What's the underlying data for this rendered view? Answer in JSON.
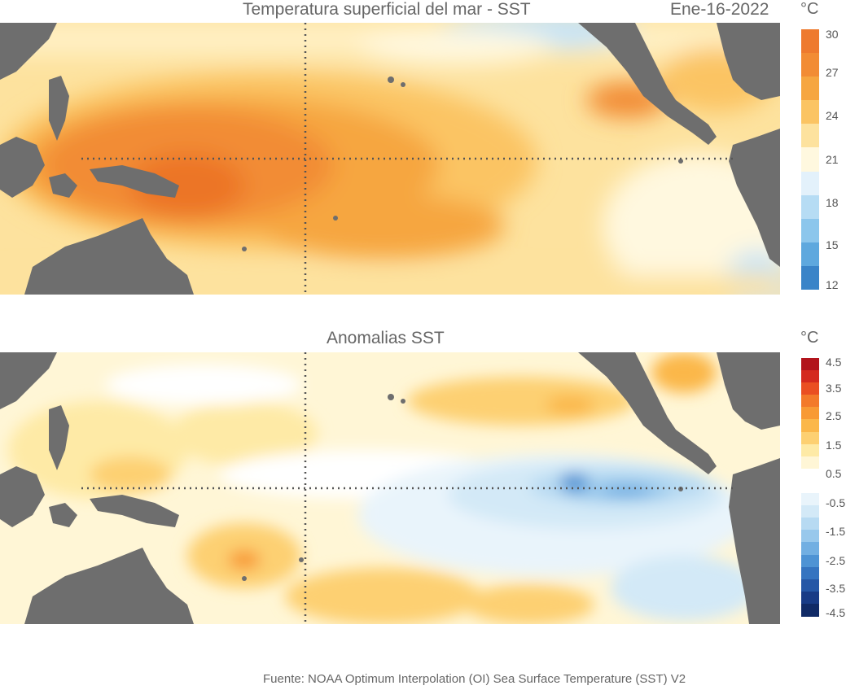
{
  "top_panel": {
    "title": "Temperatura superficial del mar - SST",
    "date": "Ene-16-2022",
    "unit": "°C",
    "colorbar": {
      "ticks": [
        "30",
        "27",
        "24",
        "21",
        "18",
        "15",
        "12"
      ],
      "colors": [
        "#ee7a2e",
        "#f28c34",
        "#f6a640",
        "#fbc463",
        "#fde29e",
        "#fff8df",
        "#e3f1fb",
        "#b6dcf4",
        "#8cc6ec",
        "#5ea8de",
        "#3a84c8"
      ]
    }
  },
  "bottom_panel": {
    "title": "Anomalias SST",
    "unit": "°C",
    "colorbar": {
      "ticks": [
        "4.5",
        "3.5",
        "2.5",
        "1.5",
        "0.5",
        "-0.5",
        "-1.5",
        "-2.5",
        "-3.5",
        "-4.5"
      ],
      "colors": [
        "#b2141c",
        "#d42a1e",
        "#ea4f22",
        "#f37a2a",
        "#f89a34",
        "#fbb74a",
        "#fdd072",
        "#feeaa6",
        "#fff6d6",
        "#ffffff",
        "#ffffff",
        "#e9f4fb",
        "#d3e9f7",
        "#b7daf2",
        "#98c8ec",
        "#72afe2",
        "#4e93d4",
        "#3574c0",
        "#2557a6",
        "#183b86",
        "#102a66"
      ]
    }
  },
  "source": "Fuente: NOAA Optimum Interpolation (OI) Sea Surface Temperature (SST) V2",
  "colors": {
    "land": "#6e6e6e",
    "grid": "#555555"
  }
}
